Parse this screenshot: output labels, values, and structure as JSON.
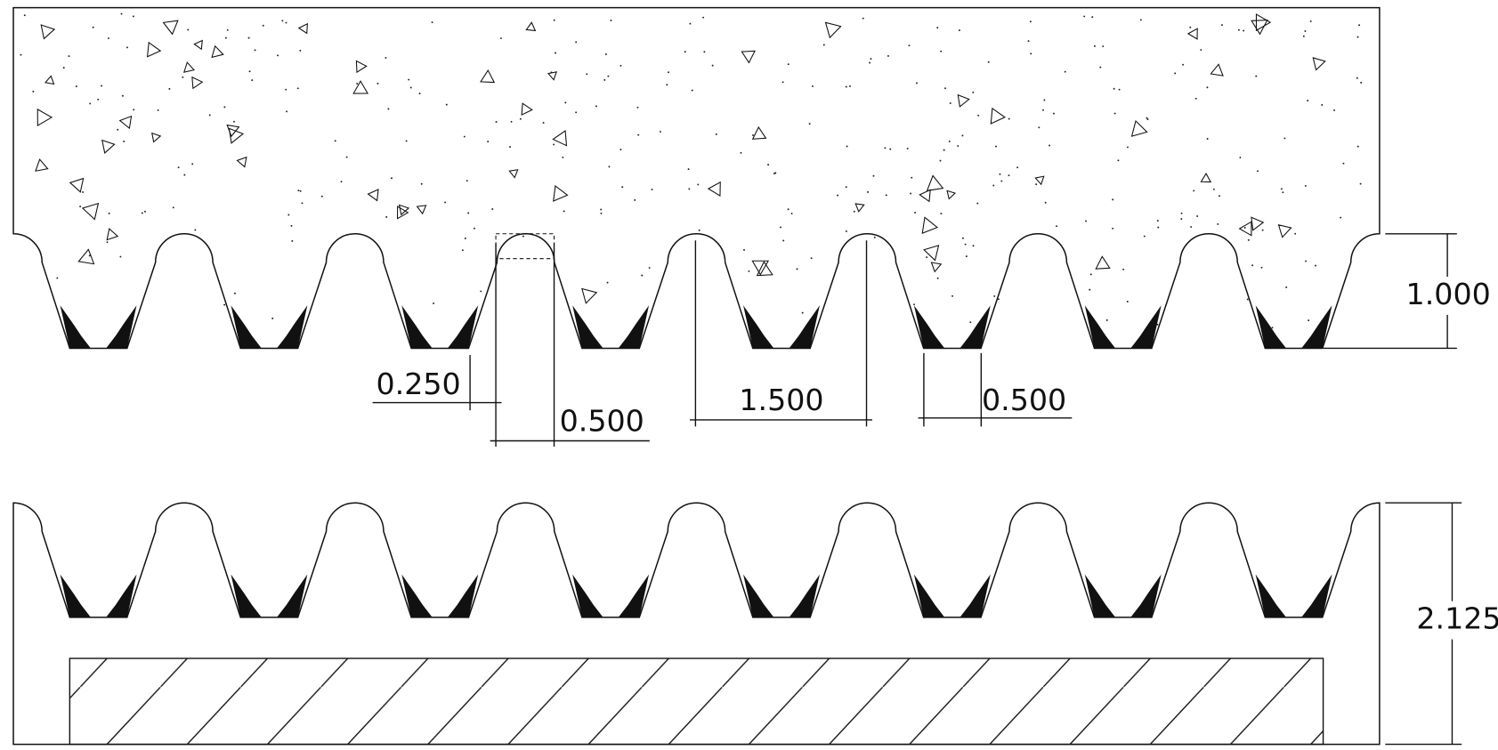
{
  "dimensions": {
    "height": "1.000",
    "radius": "0.250",
    "crest_width": "0.500",
    "pitch": "1.500",
    "valley_width": "0.500",
    "total_height": "2.125"
  }
}
